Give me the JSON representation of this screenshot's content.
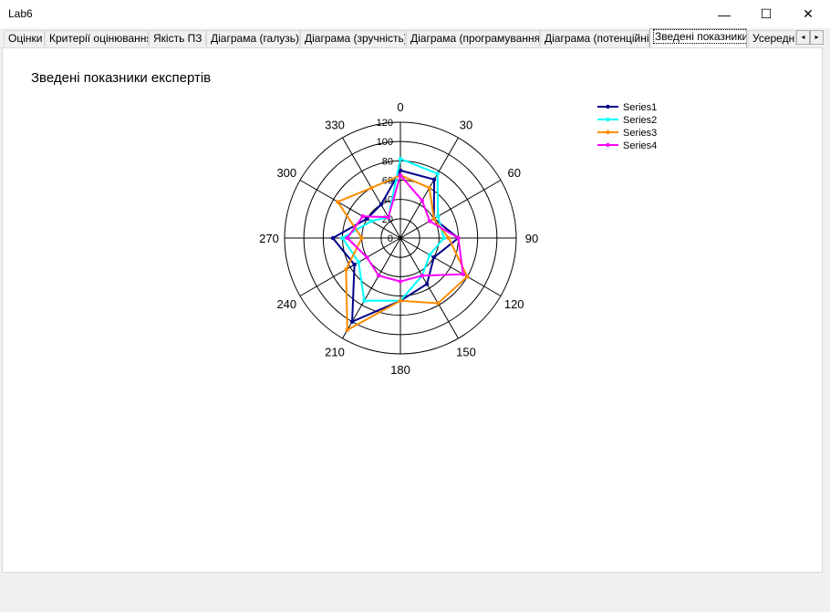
{
  "window": {
    "title": "Lab6",
    "minimize_glyph": "—",
    "maximize_glyph": "☐",
    "close_glyph": "✕"
  },
  "tabs": [
    {
      "label": "Оцінки",
      "active": false
    },
    {
      "label": "Критерії оцінювання",
      "active": false
    },
    {
      "label": "Якість ПЗ",
      "active": false
    },
    {
      "label": "Діаграма (галузь)",
      "active": false
    },
    {
      "label": "Діаграма (зручність)",
      "active": false
    },
    {
      "label": "Діаграма (програмування)",
      "active": false
    },
    {
      "label": "Діаграма (потенційні)",
      "active": false
    },
    {
      "label": "Зведені показники",
      "active": true
    },
    {
      "label": "Усередн",
      "active": false
    }
  ],
  "tab_scroll": {
    "left_glyph": "◂",
    "right_glyph": "▸"
  },
  "chart_data": {
    "type": "polar-line",
    "title": "Зведені показники експертів",
    "radial_ticks": [
      0,
      20,
      40,
      60,
      80,
      100,
      120
    ],
    "radial_max": 120,
    "angle_ticks": [
      0,
      30,
      60,
      90,
      120,
      150,
      180,
      210,
      240,
      270,
      300,
      330
    ],
    "angles": [
      0,
      30,
      60,
      90,
      120,
      150,
      180,
      210,
      240,
      270,
      300,
      330
    ],
    "legend_position": "top-right",
    "series": [
      {
        "name": "Series1",
        "color": "#00008b",
        "values": [
          70,
          70,
          40,
          60,
          40,
          55,
          65,
          100,
          55,
          70,
          40,
          40
        ]
      },
      {
        "name": "Series2",
        "color": "#00ffff",
        "values": [
          82,
          77,
          45,
          45,
          35,
          45,
          65,
          75,
          50,
          60,
          35,
          25
        ]
      },
      {
        "name": "Series3",
        "color": "#ff8c00",
        "values": [
          65,
          60,
          40,
          50,
          80,
          78,
          65,
          110,
          65,
          40,
          75,
          60
        ]
      },
      {
        "name": "Series4",
        "color": "#ff00ff",
        "values": [
          65,
          45,
          35,
          60,
          75,
          45,
          45,
          45,
          40,
          55,
          45,
          25
        ]
      }
    ]
  }
}
